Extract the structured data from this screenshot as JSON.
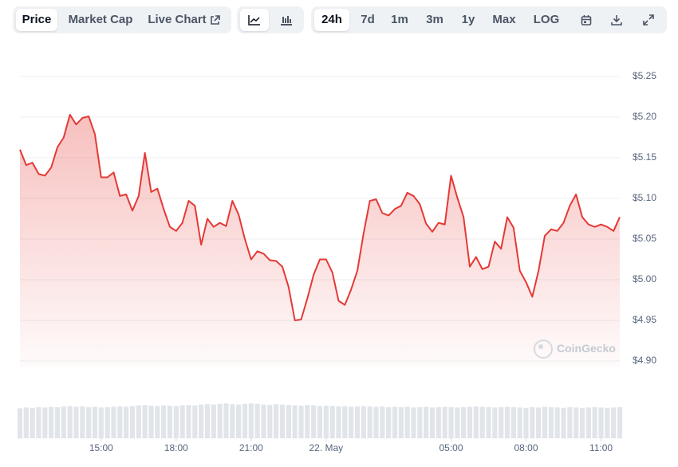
{
  "toolbar": {
    "view_tabs": [
      "Price",
      "Market Cap",
      "Live Chart"
    ],
    "range_tabs": [
      "24h",
      "7d",
      "1m",
      "3m",
      "1y",
      "Max",
      "LOG"
    ]
  },
  "watermark": "CoinGecko",
  "chart_data": {
    "type": "area",
    "color": "#e53935",
    "grid": true,
    "x": [
      -12.25,
      -12,
      -11.75,
      -11.5,
      -11.25,
      -11,
      -10.75,
      -10.5,
      -10.25,
      -10,
      -9.75,
      -9.5,
      -9.25,
      -9,
      -8.75,
      -8.5,
      -8.25,
      -8,
      -7.75,
      -7.5,
      -7.25,
      -7,
      -6.75,
      -6.5,
      -6.25,
      -6,
      -5.75,
      -5.5,
      -5.25,
      -5,
      -4.75,
      -4.5,
      -4.25,
      -4,
      -3.75,
      -3.5,
      -3.25,
      -3,
      -2.75,
      -2.5,
      -2.25,
      -2,
      -1.75,
      -1.5,
      -1.25,
      -1,
      -0.75,
      -0.5,
      -0.25,
      0,
      0.25,
      0.5,
      0.75,
      1,
      1.25,
      1.5,
      1.75,
      2,
      2.25,
      2.5,
      2.75,
      3,
      3.25,
      3.5,
      3.75,
      4,
      4.25,
      4.5,
      4.75,
      5,
      5.25,
      5.5,
      5.75,
      6,
      6.25,
      6.5,
      6.75,
      7,
      7.25,
      7.5,
      7.75,
      8,
      8.25,
      8.5,
      8.75,
      9,
      9.25,
      9.5,
      9.75,
      10,
      10.25,
      10.5,
      10.75,
      11,
      11.25,
      11.5,
      11.75
    ],
    "values": [
      5.16,
      5.141,
      5.144,
      5.13,
      5.128,
      5.138,
      5.163,
      5.175,
      5.203,
      5.191,
      5.199,
      5.201,
      5.179,
      5.126,
      5.126,
      5.132,
      5.103,
      5.105,
      5.085,
      5.103,
      5.156,
      5.108,
      5.112,
      5.087,
      5.065,
      5.06,
      5.07,
      5.097,
      5.091,
      5.043,
      5.075,
      5.065,
      5.07,
      5.066,
      5.097,
      5.08,
      5.05,
      5.025,
      5.035,
      5.032,
      5.024,
      5.023,
      5.016,
      4.991,
      4.95,
      4.951,
      4.977,
      5.006,
      5.025,
      5.025,
      5.009,
      4.974,
      4.969,
      4.988,
      5.011,
      5.057,
      5.097,
      5.099,
      5.082,
      5.079,
      5.087,
      5.091,
      5.107,
      5.103,
      5.093,
      5.069,
      5.059,
      5.07,
      5.068,
      5.128,
      5.101,
      5.077,
      5.016,
      5.028,
      5.013,
      5.016,
      5.047,
      5.038,
      5.077,
      5.064,
      5.011,
      4.997,
      4.979,
      5.011,
      5.054,
      5.062,
      5.06,
      5.07,
      5.091,
      5.105,
      5.077,
      5.068,
      5.065,
      5.068,
      5.065,
      5.06,
      5.077
    ],
    "volume": [
      0.82,
      0.84,
      0.83,
      0.85,
      0.84,
      0.86,
      0.85,
      0.87,
      0.88,
      0.86,
      0.87,
      0.85,
      0.86,
      0.84,
      0.85,
      0.86,
      0.87,
      0.86,
      0.88,
      0.9,
      0.91,
      0.89,
      0.88,
      0.9,
      0.89,
      0.88,
      0.9,
      0.91,
      0.9,
      0.92,
      0.93,
      0.92,
      0.94,
      0.95,
      0.93,
      0.92,
      0.94,
      0.95,
      0.94,
      0.92,
      0.91,
      0.93,
      0.92,
      0.91,
      0.9,
      0.89,
      0.91,
      0.9,
      0.88,
      0.89,
      0.88,
      0.87,
      0.88,
      0.86,
      0.87,
      0.88,
      0.87,
      0.86,
      0.87,
      0.85,
      0.86,
      0.85,
      0.86,
      0.84,
      0.85,
      0.86,
      0.84,
      0.85,
      0.86,
      0.85,
      0.84,
      0.85,
      0.86,
      0.87,
      0.86,
      0.85,
      0.84,
      0.85,
      0.86,
      0.85,
      0.84,
      0.83,
      0.85,
      0.84,
      0.86,
      0.85,
      0.84,
      0.83,
      0.85,
      0.84,
      0.83,
      0.84,
      0.85,
      0.84,
      0.83,
      0.84,
      0.85
    ],
    "volume_color": "#e1e5ea",
    "xlim": [
      -12.25,
      11.75
    ],
    "xticks": [
      {
        "value": -9,
        "label": "15:00"
      },
      {
        "value": -6,
        "label": "18:00"
      },
      {
        "value": -3,
        "label": "21:00"
      },
      {
        "value": 0,
        "label": "22. May"
      },
      {
        "value": 5,
        "label": "05:00"
      },
      {
        "value": 8,
        "label": "08:00"
      },
      {
        "value": 11,
        "label": "11:00"
      }
    ],
    "ylim": [
      4.9,
      5.25
    ],
    "yticks": [
      {
        "value": 4.9,
        "label": "$4.90"
      },
      {
        "value": 4.95,
        "label": "$4.95"
      },
      {
        "value": 5.0,
        "label": "$5.00"
      },
      {
        "value": 5.05,
        "label": "$5.05"
      },
      {
        "value": 5.1,
        "label": "$5.10"
      },
      {
        "value": 5.15,
        "label": "$5.15"
      },
      {
        "value": 5.2,
        "label": "$5.20"
      },
      {
        "value": 5.25,
        "label": "$5.25"
      }
    ]
  }
}
